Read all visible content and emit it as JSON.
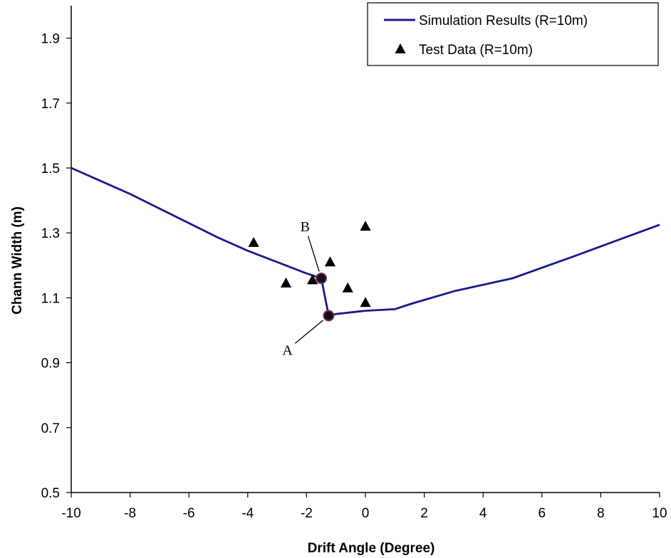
{
  "chart_data": {
    "type": "line",
    "xlabel": "Drift Angle (Degree)",
    "ylabel": "Chann Width (m)",
    "xlim": [
      -10,
      10
    ],
    "ylim": [
      0.5,
      2.0
    ],
    "xticks": [
      -10,
      -8,
      -6,
      -4,
      -2,
      0,
      2,
      4,
      6,
      8,
      10
    ],
    "yticks": [
      0.5,
      0.7,
      0.9,
      1.1,
      1.3,
      1.5,
      1.7,
      1.9
    ],
    "xtick_labels": [
      "-10",
      "-8",
      "-6",
      "-4",
      "-2",
      "0",
      "2",
      "4",
      "6",
      "8",
      "10"
    ],
    "ytick_labels": [
      "0.5",
      "0.7",
      "0.9",
      "1.1",
      "1.3",
      "1.5",
      "1.7",
      "1.9"
    ],
    "grid": false,
    "legend_position": "top-right",
    "series": [
      {
        "name": "Simulation Results (R=10m)",
        "kind": "line",
        "color": "#1a1a8c",
        "points": [
          [
            -10,
            1.5
          ],
          [
            -8,
            1.42
          ],
          [
            -6,
            1.33
          ],
          [
            -5,
            1.285
          ],
          [
            -4,
            1.245
          ],
          [
            -3,
            1.21
          ],
          [
            -2,
            1.175
          ],
          [
            -1.5,
            1.16
          ],
          [
            -1.25,
            1.045
          ],
          [
            -1,
            1.05
          ],
          [
            0,
            1.06
          ],
          [
            1,
            1.065
          ],
          [
            1.5,
            1.08
          ],
          [
            3,
            1.12
          ],
          [
            5,
            1.16
          ],
          [
            7,
            1.225
          ],
          [
            10,
            1.325
          ]
        ]
      },
      {
        "name": "Test Data (R=10m)",
        "kind": "scatter",
        "marker": "triangle",
        "color": "#000000",
        "points": [
          [
            -3.8,
            1.27
          ],
          [
            -2.7,
            1.145
          ],
          [
            -1.8,
            1.155
          ],
          [
            -1.2,
            1.21
          ],
          [
            -0.6,
            1.13
          ],
          [
            0,
            1.32
          ],
          [
            0,
            1.085
          ]
        ]
      }
    ],
    "annotations": [
      {
        "text": "B",
        "x": -1.5,
        "y": 1.16,
        "label_x": -2.05,
        "label_y": 1.32
      },
      {
        "text": "A",
        "x": -1.25,
        "y": 1.045,
        "label_x": -2.65,
        "label_y": 0.94
      }
    ]
  }
}
